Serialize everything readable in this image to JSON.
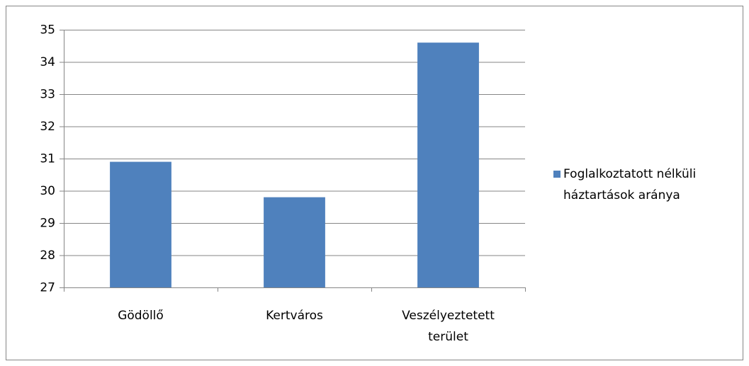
{
  "chart_data": {
    "type": "bar",
    "categories": [
      "Gödöllő",
      "Kertváros",
      "Veszélyeztetett terület"
    ],
    "series": [
      {
        "name": "Foglalkoztatott nélküli háztartások aránya",
        "color": "#4f81bd",
        "values": [
          30.9,
          29.8,
          34.6
        ]
      }
    ],
    "ylim": [
      27,
      35
    ],
    "yticks": [
      27,
      28,
      29,
      30,
      31,
      32,
      33,
      34,
      35
    ],
    "grid": true,
    "legend": "right"
  }
}
